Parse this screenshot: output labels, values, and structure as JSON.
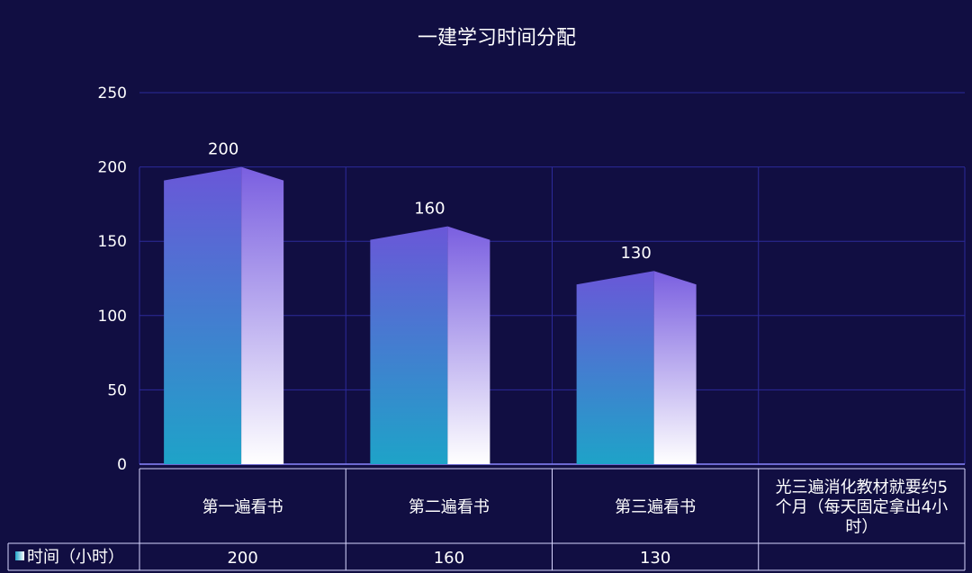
{
  "chart_data": {
    "type": "bar",
    "title": "一建学习时间分配",
    "categories": [
      [
        "第一遍看书"
      ],
      [
        "第二遍看书"
      ],
      [
        "第三遍看书"
      ],
      [
        "光三遍消化教材就要约5",
        "个月（每天固定拿出4小",
        "时）"
      ]
    ],
    "series": [
      {
        "name": "时间（小时）",
        "values": [
          200,
          160,
          130,
          null
        ]
      }
    ],
    "ylim": [
      0,
      250
    ],
    "yticks": [
      0,
      50,
      100,
      150,
      200,
      250
    ],
    "grid": true,
    "legend": "in-table",
    "colors": {
      "background": "#110e42",
      "grid": "#2c2a9a",
      "axis": "#8b86ff",
      "table_border": "#d8d6ff",
      "bar_front_top": "#6a57d8",
      "bar_front_bottom": "#1ea3c8",
      "bar_side_top": "#7a5fe0",
      "bar_side_bottom": "#ffffff"
    }
  }
}
